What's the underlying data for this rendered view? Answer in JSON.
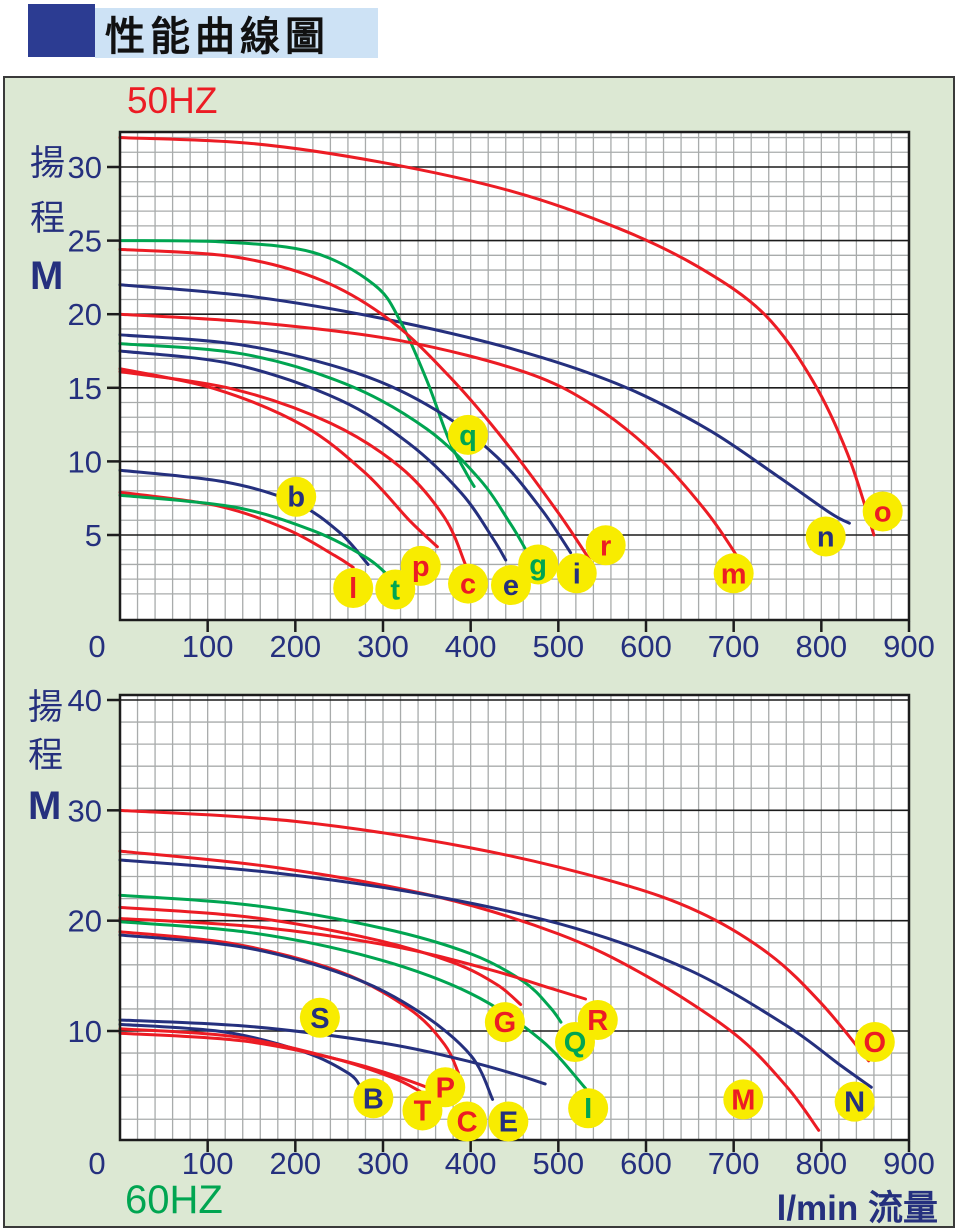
{
  "title": "性能曲線圖",
  "x_unit_label": "l/min 流量",
  "palette": {
    "red": "#ec1c24",
    "blue": "#25307e",
    "green": "#00a551",
    "axis_text": "#25307e",
    "panel_bg": "#dce8d3",
    "plot_bg": "#ffffff",
    "grid_minor": "#a8abab",
    "grid_major": "#1c1c1c",
    "plot_border": "#1c1c1c",
    "label_circle": "#f8ec00",
    "title_bar_bg": "#cde2f5",
    "title_square": "#2c3c92"
  },
  "chart_data": [
    {
      "type": "line",
      "title": "50HZ",
      "xlabel": "l/min 流量",
      "ylabel": "揚程 M",
      "ylabel_chars": [
        "揚",
        "程"
      ],
      "y_unit": "M",
      "xlim": [
        0,
        900
      ],
      "ylim": [
        0,
        32.5
      ],
      "x_ticks": [
        0,
        100,
        200,
        300,
        400,
        500,
        600,
        700,
        800,
        900
      ],
      "y_ticks": [
        30,
        25,
        20,
        15,
        10,
        5
      ],
      "grid": true,
      "legend_position": "none",
      "series": [
        {
          "name": "o",
          "color": "red",
          "points": [
            [
              0,
              32
            ],
            [
              150,
              31.6
            ],
            [
              300,
              30.3
            ],
            [
              450,
              28.3
            ],
            [
              570,
              25.8
            ],
            [
              660,
              23.2
            ],
            [
              735,
              20
            ],
            [
              790,
              15.5
            ],
            [
              830,
              10.5
            ],
            [
              860,
              5
            ]
          ]
        },
        {
          "name": "n",
          "color": "blue",
          "points": [
            [
              0,
              22
            ],
            [
              150,
              21.2
            ],
            [
              300,
              19.7
            ],
            [
              450,
              17.6
            ],
            [
              570,
              15.2
            ],
            [
              670,
              12.2
            ],
            [
              750,
              9
            ],
            [
              810,
              6.5
            ],
            [
              832,
              5.8
            ]
          ]
        },
        {
          "name": "q",
          "color": "green",
          "points": [
            [
              0,
              25
            ],
            [
              120,
              24.9
            ],
            [
              220,
              24.2
            ],
            [
              290,
              22
            ],
            [
              320,
              19.5
            ],
            [
              350,
              15.5
            ],
            [
              375,
              11.5
            ],
            [
              395,
              9.2
            ],
            [
              404,
              8.3
            ]
          ]
        },
        {
          "name": "r",
          "color": "red",
          "points": [
            [
              0,
              24.4
            ],
            [
              130,
              23.9
            ],
            [
              230,
              22.3
            ],
            [
              310,
              19.5
            ],
            [
              380,
              15.5
            ],
            [
              440,
              11.3
            ],
            [
              500,
              6.5
            ],
            [
              537,
              3.2
            ]
          ]
        },
        {
          "name": "m",
          "color": "red",
          "points": [
            [
              0,
              20
            ],
            [
              160,
              19.4
            ],
            [
              320,
              18.2
            ],
            [
              460,
              16.1
            ],
            [
              540,
              13.8
            ],
            [
              610,
              10.5
            ],
            [
              670,
              6.5
            ],
            [
              711,
              2.9
            ]
          ]
        },
        {
          "name": "i",
          "color": "blue",
          "points": [
            [
              0,
              18.6
            ],
            [
              140,
              17.9
            ],
            [
              270,
              16
            ],
            [
              360,
              13.5
            ],
            [
              430,
              10.3
            ],
            [
              480,
              6.8
            ],
            [
              514,
              3.8
            ]
          ]
        },
        {
          "name": "g",
          "color": "green",
          "points": [
            [
              0,
              18
            ],
            [
              140,
              17.3
            ],
            [
              260,
              15.2
            ],
            [
              350,
              12.2
            ],
            [
              410,
              8.8
            ],
            [
              445,
              5.8
            ],
            [
              462,
              4.1
            ]
          ]
        },
        {
          "name": "e",
          "color": "blue",
          "points": [
            [
              0,
              17.5
            ],
            [
              130,
              16.6
            ],
            [
              250,
              14.2
            ],
            [
              330,
              11.2
            ],
            [
              390,
              7.8
            ],
            [
              425,
              4.8
            ],
            [
              440,
              3.3
            ]
          ]
        },
        {
          "name": "c",
          "color": "red",
          "points": [
            [
              0,
              16.1
            ],
            [
              130,
              14.9
            ],
            [
              240,
              12.6
            ],
            [
              320,
              9.6
            ],
            [
              370,
              6.2
            ],
            [
              394,
              3
            ]
          ]
        },
        {
          "name": "p",
          "color": "red",
          "points": [
            [
              0,
              16.3
            ],
            [
              110,
              14.9
            ],
            [
              210,
              12.4
            ],
            [
              280,
              9.2
            ],
            [
              330,
              6
            ],
            [
              362,
              4.2
            ]
          ]
        },
        {
          "name": "b",
          "color": "blue",
          "points": [
            [
              0,
              9.4
            ],
            [
              120,
              8.6
            ],
            [
              200,
              7.2
            ],
            [
              250,
              5.2
            ],
            [
              283,
              3
            ]
          ]
        },
        {
          "name": "l",
          "color": "red",
          "points": [
            [
              0,
              7.9
            ],
            [
              110,
              7
            ],
            [
              190,
              5.4
            ],
            [
              245,
              3.6
            ],
            [
              266,
              2.8
            ]
          ]
        },
        {
          "name": "t",
          "color": "green",
          "points": [
            [
              0,
              7.7
            ],
            [
              130,
              6.9
            ],
            [
              220,
              5.3
            ],
            [
              280,
              3.5
            ],
            [
              305,
              2.3
            ]
          ]
        }
      ],
      "labels": [
        {
          "text": "b",
          "color": "blue",
          "x": 201,
          "y": 7.6
        },
        {
          "text": "q",
          "color": "green",
          "x": 397,
          "y": 11.8
        },
        {
          "text": "l",
          "color": "red",
          "x": 266,
          "y": 1.4
        },
        {
          "text": "t",
          "color": "green",
          "x": 314,
          "y": 1.3
        },
        {
          "text": "p",
          "color": "red",
          "x": 343,
          "y": 2.9
        },
        {
          "text": "c",
          "color": "red",
          "x": 397,
          "y": 1.7
        },
        {
          "text": "e",
          "color": "blue",
          "x": 446,
          "y": 1.6
        },
        {
          "text": "g",
          "color": "green",
          "x": 477,
          "y": 3.0
        },
        {
          "text": "i",
          "color": "blue",
          "x": 521,
          "y": 2.4
        },
        {
          "text": "r",
          "color": "red",
          "x": 554,
          "y": 4.3
        },
        {
          "text": "m",
          "color": "red",
          "x": 700,
          "y": 2.4
        },
        {
          "text": "n",
          "color": "blue",
          "x": 805,
          "y": 4.9
        },
        {
          "text": "o",
          "color": "red",
          "x": 870,
          "y": 6.6
        }
      ]
    },
    {
      "type": "line",
      "title": "60HZ",
      "xlabel": "l/min 流量",
      "ylabel": "揚程 M",
      "ylabel_chars": [
        "揚",
        "程"
      ],
      "y_unit": "M",
      "xlim": [
        0,
        900
      ],
      "ylim": [
        0,
        40.5
      ],
      "x_ticks": [
        0,
        100,
        200,
        300,
        400,
        500,
        600,
        700,
        800,
        900
      ],
      "y_ticks": [
        40,
        30,
        20,
        10
      ],
      "grid": true,
      "legend_position": "none",
      "series": [
        {
          "name": "O",
          "color": "red",
          "points": [
            [
              0,
              30
            ],
            [
              200,
              29
            ],
            [
              400,
              26.6
            ],
            [
              560,
              23.6
            ],
            [
              660,
              20.8
            ],
            [
              740,
              17
            ],
            [
              800,
              12.5
            ],
            [
              854,
              7.3
            ]
          ]
        },
        {
          "name": "M",
          "color": "red",
          "points": [
            [
              0,
              26.3
            ],
            [
              180,
              24.8
            ],
            [
              360,
              22.2
            ],
            [
              500,
              18.8
            ],
            [
              600,
              15
            ],
            [
              700,
              9.8
            ],
            [
              760,
              5
            ],
            [
              797,
              1
            ]
          ]
        },
        {
          "name": "N",
          "color": "blue",
          "points": [
            [
              0,
              25.5
            ],
            [
              180,
              24.3
            ],
            [
              360,
              22.2
            ],
            [
              520,
              19.3
            ],
            [
              650,
              15.5
            ],
            [
              760,
              10.5
            ],
            [
              820,
              7
            ],
            [
              857,
              4.9
            ]
          ]
        },
        {
          "name": "Q",
          "color": "green",
          "points": [
            [
              0,
              22.3
            ],
            [
              150,
              21.4
            ],
            [
              300,
              19.3
            ],
            [
              400,
              17
            ],
            [
              460,
              14.5
            ],
            [
              490,
              12.2
            ],
            [
              503,
              10.8
            ]
          ]
        },
        {
          "name": "G",
          "color": "red",
          "points": [
            [
              0,
              21.2
            ],
            [
              150,
              20.3
            ],
            [
              290,
              18.3
            ],
            [
              380,
              16.2
            ],
            [
              430,
              14.2
            ],
            [
              457,
              12.4
            ]
          ]
        },
        {
          "name": "R",
          "color": "red",
          "points": [
            [
              0,
              20.2
            ],
            [
              160,
              19.4
            ],
            [
              310,
              17.7
            ],
            [
              420,
              15.6
            ],
            [
              490,
              13.9
            ],
            [
              531,
              12.9
            ]
          ]
        },
        {
          "name": "I",
          "color": "green",
          "points": [
            [
              0,
              19.9
            ],
            [
              150,
              18.9
            ],
            [
              290,
              16.6
            ],
            [
              400,
              13.4
            ],
            [
              480,
              9.2
            ],
            [
              531,
              4.8
            ]
          ]
        },
        {
          "name": "P",
          "color": "red",
          "points": [
            [
              0,
              19
            ],
            [
              130,
              17.9
            ],
            [
              250,
              15.4
            ],
            [
              330,
              12
            ],
            [
              370,
              8.8
            ],
            [
              386,
              6.2
            ]
          ]
        },
        {
          "name": "E",
          "color": "blue",
          "points": [
            [
              0,
              18.7
            ],
            [
              140,
              17.6
            ],
            [
              260,
              15
            ],
            [
              340,
              11.8
            ],
            [
              400,
              7.8
            ],
            [
              425,
              3.8
            ]
          ]
        },
        {
          "name": "S",
          "color": "blue",
          "points": [
            [
              0,
              11
            ],
            [
              150,
              10.4
            ],
            [
              300,
              8.9
            ],
            [
              390,
              7.4
            ],
            [
              450,
              6.1
            ],
            [
              485,
              5.2
            ]
          ]
        },
        {
          "name": "B",
          "color": "blue",
          "points": [
            [
              0,
              10.6
            ],
            [
              120,
              9.9
            ],
            [
              210,
              8.1
            ],
            [
              260,
              6.2
            ],
            [
              274,
              5
            ]
          ]
        },
        {
          "name": "T",
          "color": "red",
          "points": [
            [
              0,
              10.2
            ],
            [
              130,
              9.5
            ],
            [
              240,
              7.6
            ],
            [
              310,
              5.8
            ],
            [
              343,
              4.5
            ]
          ]
        },
        {
          "name": "C",
          "color": "red",
          "points": [
            [
              0,
              9.8
            ],
            [
              140,
              9.1
            ],
            [
              260,
              7.2
            ],
            [
              340,
              5.2
            ],
            [
              383,
              3.7
            ]
          ]
        }
      ],
      "labels": [
        {
          "text": "S",
          "color": "blue",
          "x": 228,
          "y": 11.2
        },
        {
          "text": "B",
          "color": "blue",
          "x": 289,
          "y": 3.9
        },
        {
          "text": "T",
          "color": "red",
          "x": 345,
          "y": 2.8
        },
        {
          "text": "C",
          "color": "red",
          "x": 396,
          "y": 1.8
        },
        {
          "text": "E",
          "color": "blue",
          "x": 443,
          "y": 1.8
        },
        {
          "text": "P",
          "color": "red",
          "x": 371,
          "y": 4.9
        },
        {
          "text": "I",
          "color": "green",
          "x": 534,
          "y": 3.0
        },
        {
          "text": "G",
          "color": "red",
          "x": 439,
          "y": 10.8
        },
        {
          "text": "Q",
          "color": "green",
          "x": 519,
          "y": 9.0
        },
        {
          "text": "R",
          "color": "red",
          "x": 545,
          "y": 11.0
        },
        {
          "text": "M",
          "color": "red",
          "x": 711,
          "y": 3.8
        },
        {
          "text": "N",
          "color": "blue",
          "x": 838,
          "y": 3.6
        },
        {
          "text": "O",
          "color": "red",
          "x": 861,
          "y": 9.0
        }
      ]
    }
  ]
}
